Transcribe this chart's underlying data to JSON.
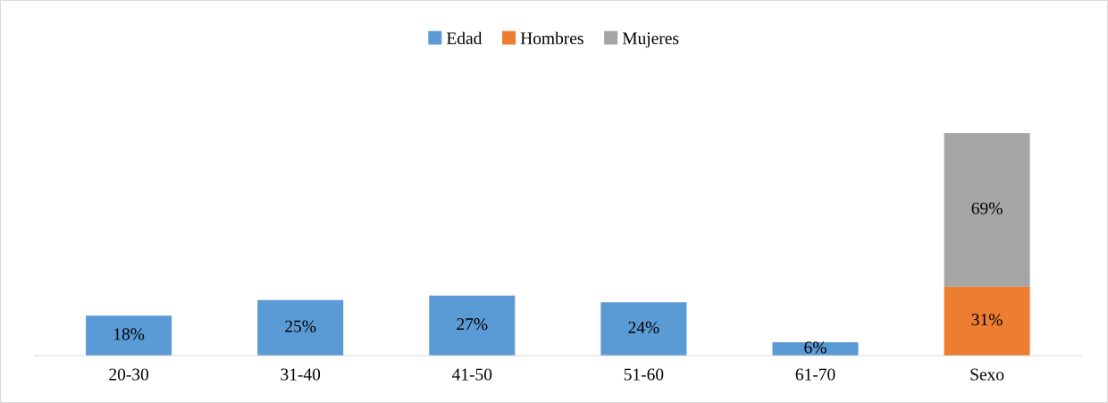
{
  "chart_data": {
    "type": "bar",
    "stacked": true,
    "categories": [
      "20-30",
      "31-40",
      "41-50",
      "51-60",
      "61-70",
      "Sexo"
    ],
    "series": [
      {
        "name": "Edad",
        "color": "#5b9bd5",
        "values": [
          18,
          25,
          27,
          24,
          6,
          null
        ],
        "value_labels": [
          "18%",
          "25%",
          "27%",
          "24%",
          "6%",
          null
        ]
      },
      {
        "name": "Hombres",
        "color": "#ed7d31",
        "values": [
          null,
          null,
          null,
          null,
          null,
          31
        ],
        "value_labels": [
          null,
          null,
          null,
          null,
          null,
          "31%"
        ]
      },
      {
        "name": "Mujeres",
        "color": "#a5a5a5",
        "values": [
          null,
          null,
          null,
          null,
          null,
          69
        ],
        "value_labels": [
          null,
          null,
          null,
          null,
          null,
          "69%"
        ]
      }
    ],
    "legend": "top"
  }
}
